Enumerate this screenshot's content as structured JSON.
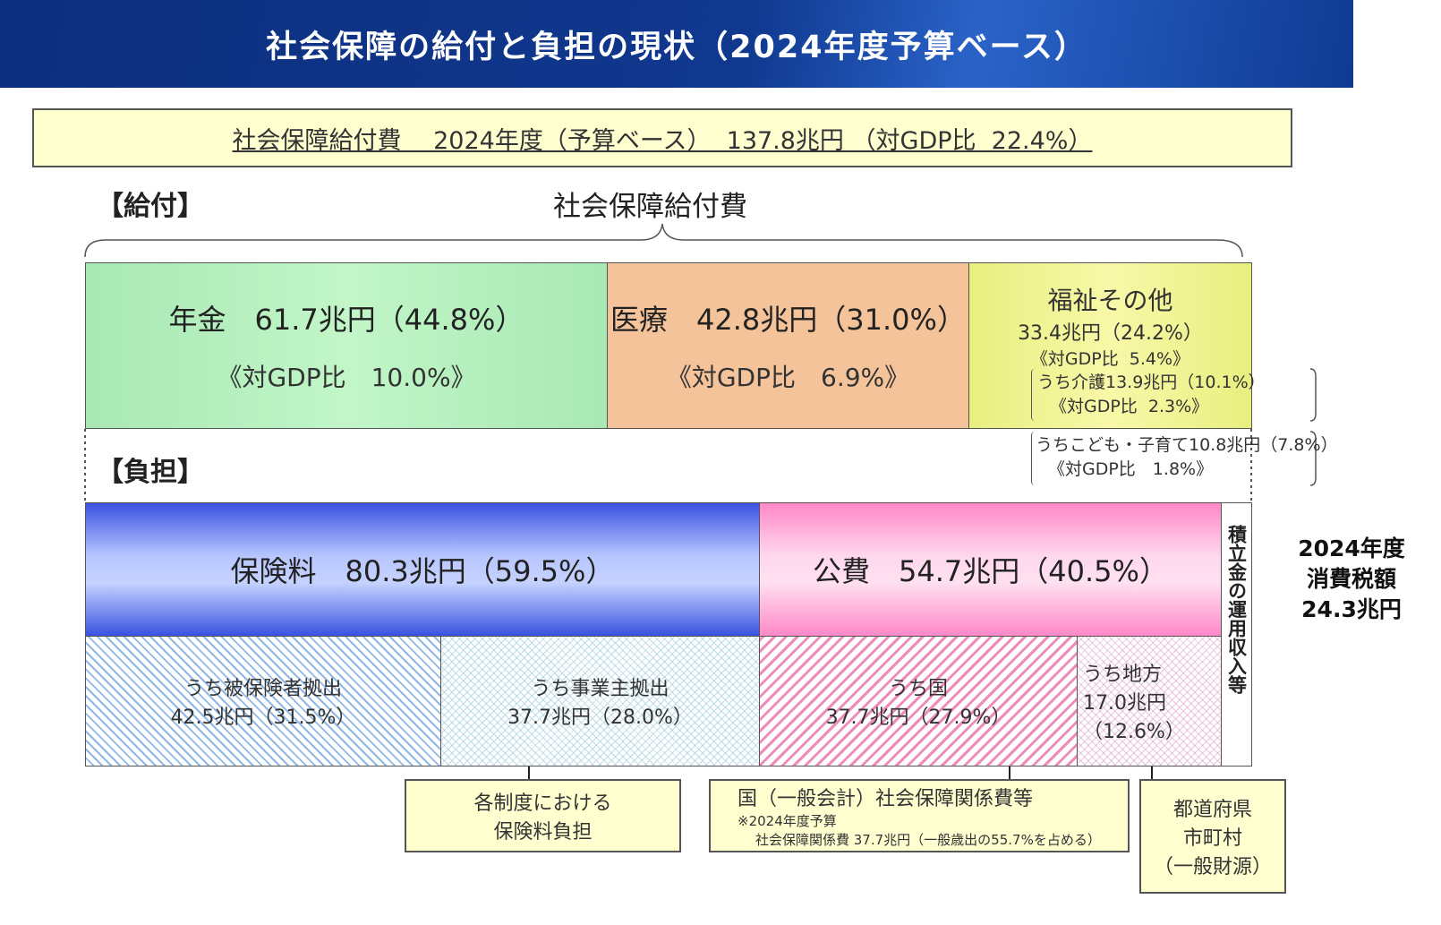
{
  "header": {
    "title": "社会保障の給付と負担の現状（2024年度予算ベース）"
  },
  "summary": {
    "text": "社会保障給付費　 2024年度（予算ベース）  137.8兆円 （対GDP比  22.4%）"
  },
  "benefits": {
    "section_label": "【給付】",
    "brace_title": "社会保障給付費",
    "pension": {
      "title": "年金　61.7兆円（44.8%）",
      "gdp": "《対GDP比　10.0%》"
    },
    "medical": {
      "title": "医療　42.8兆円（31.0%）",
      "gdp": "《対GDP比　6.9%》"
    },
    "welfare": {
      "title": "福祉その他",
      "amount": "33.4兆円（24.2%）",
      "gdp": "《対GDP比  5.4%》",
      "care": "うち介護13.9兆円（10.1%）",
      "care_gdp": "《対GDP比  2.3%》",
      "children": "うちこども・子育て10.8兆円（7.8%）",
      "children_gdp": "《対GDP比　1.8%》"
    }
  },
  "burden": {
    "section_label": "【負担】",
    "premium": {
      "title": "保険料　80.3兆円（59.5%）"
    },
    "public": {
      "title": "公費　54.7兆円（40.5%）"
    },
    "reserve": {
      "label": "積立金の運用収入等"
    },
    "insured": {
      "label": "うち被保険者拠出",
      "value": "42.5兆円（31.5%）"
    },
    "employer": {
      "label": "うち事業主拠出",
      "value": "37.7兆円（28.0%）"
    },
    "nation": {
      "label": "うち国",
      "value": "37.7兆円（27.9%）"
    },
    "local": {
      "label": "うち地方",
      "value": "17.0兆円",
      "share": "（12.6%）"
    }
  },
  "notes": {
    "premium_note": {
      "line1": "各制度における",
      "line2": "保険料負担"
    },
    "nation_note": {
      "line1": "国（一般会計）社会保障関係費等",
      "line2": "※2024年度予算",
      "line3": "社会保障関係費 37.7兆円（一般歳出の55.7%を占める）"
    },
    "local_note": {
      "line1": "都道府県",
      "line2": "市町村",
      "line3": "（一般財源）"
    }
  },
  "consumption_tax": {
    "line1": "2024年度",
    "line2": "消費税額",
    "line3": "24.3兆円"
  },
  "colors": {
    "header": "#10388f",
    "summary_bg": "#ffffd0",
    "pension": "#b6f0be",
    "medical": "#f4c39a",
    "welfare": "#f4f498",
    "premium": "#3a52e0",
    "public": "#ff88c8"
  }
}
